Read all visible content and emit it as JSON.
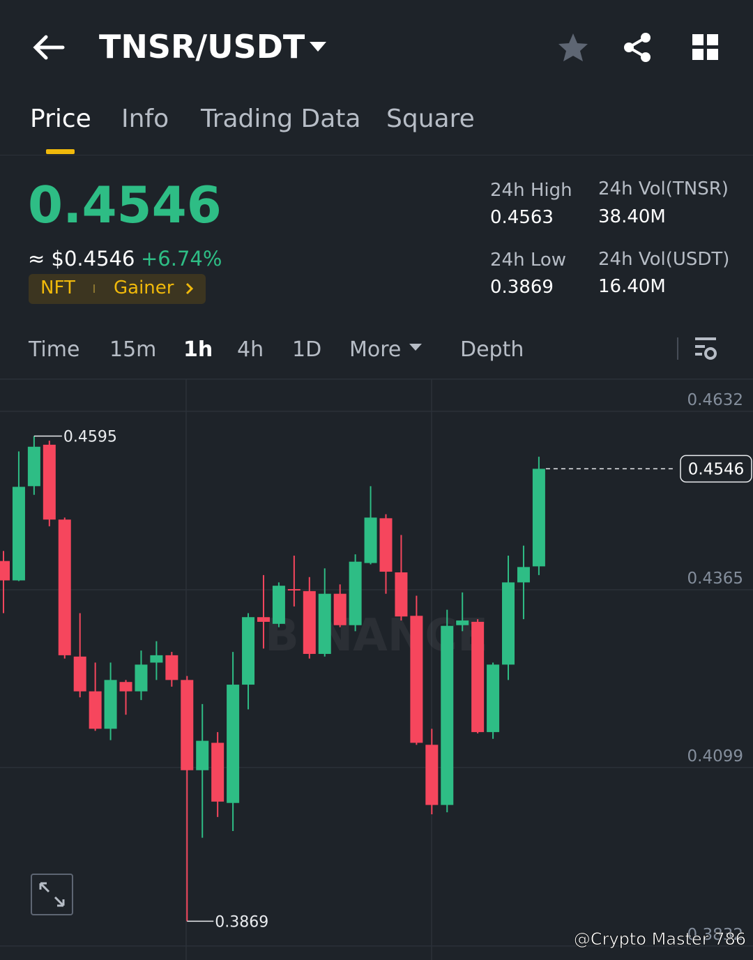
{
  "header": {
    "pair": "TNSR/USDT"
  },
  "tabs": [
    "Price",
    "Info",
    "Trading Data",
    "Square"
  ],
  "price": {
    "last": "0.4546",
    "usd": "≈ $0.4546",
    "change": "+6.74%",
    "tags": [
      "NFT",
      "Gainer"
    ]
  },
  "stats": [
    {
      "label": "24h High",
      "value": "0.4563"
    },
    {
      "label": "24h Vol(TNSR)",
      "value": "38.40M"
    },
    {
      "label": "24h Low",
      "value": "0.3869"
    },
    {
      "label": "24h Vol(USDT)",
      "value": "16.40M"
    }
  ],
  "intervals": [
    "Time",
    "15m",
    "1h",
    "4h",
    "1D",
    "More",
    "Depth"
  ],
  "chart_data": {
    "type": "candlestick",
    "open": [
      0.4408,
      0.4379,
      0.452,
      0.4582,
      0.447,
      0.4265,
      0.4213,
      0.4157,
      0.4227,
      0.4213,
      0.4256,
      0.4267,
      0.423,
      0.4095,
      0.4136,
      0.4046,
      0.4223,
      0.4324,
      0.4314,
      0.4366,
      0.4363,
      0.4269,
      0.4359,
      0.4312,
      0.4405,
      0.4472,
      0.4391,
      0.4326,
      0.4133,
      0.4043,
      0.4312,
      0.4317,
      0.4152,
      0.4253,
      0.4376,
      0.44
    ],
    "high": [
      0.4423,
      0.4572,
      0.4595,
      0.4588,
      0.4473,
      0.433,
      0.4256,
      0.4256,
      0.423,
      0.4274,
      0.4288,
      0.4272,
      0.4236,
      0.4194,
      0.4152,
      0.4272,
      0.433,
      0.4387,
      0.4376,
      0.4416,
      0.4384,
      0.4397,
      0.4373,
      0.4418,
      0.452,
      0.4478,
      0.4447,
      0.4356,
      0.4157,
      0.4335,
      0.4361,
      0.4321,
      0.4256,
      0.4416,
      0.4431,
      0.4564
    ],
    "low": [
      0.433,
      0.4378,
      0.4507,
      0.446,
      0.4262,
      0.4204,
      0.4154,
      0.414,
      0.4178,
      0.42,
      0.423,
      0.422,
      0.3869,
      0.3994,
      0.4025,
      0.4004,
      0.4186,
      0.4277,
      0.4309,
      0.434,
      0.4262,
      0.4265,
      0.4309,
      0.4303,
      0.4403,
      0.4359,
      0.4319,
      0.4133,
      0.4029,
      0.4032,
      0.4303,
      0.415,
      0.4142,
      0.423,
      0.4321,
      0.4387
    ],
    "close": [
      0.4379,
      0.4519,
      0.4579,
      0.447,
      0.4267,
      0.4213,
      0.4157,
      0.423,
      0.4213,
      0.4253,
      0.4267,
      0.423,
      0.4095,
      0.4139,
      0.4048,
      0.4223,
      0.4324,
      0.4317,
      0.4371,
      0.4364,
      0.4269,
      0.4359,
      0.4312,
      0.4407,
      0.4473,
      0.4392,
      0.4325,
      0.4136,
      0.4043,
      0.4311,
      0.4319,
      0.4152,
      0.4253,
      0.4376,
      0.4399,
      0.4546
    ],
    "ylim": [
      0.3811,
      0.4681
    ],
    "yticks": [
      0.4632,
      0.4365,
      0.4099,
      0.3832
    ],
    "up_color": "#2ebd85",
    "down_color": "#f6465d",
    "watermark": "BINANCE"
  },
  "credit": "@Crypto Master 786"
}
